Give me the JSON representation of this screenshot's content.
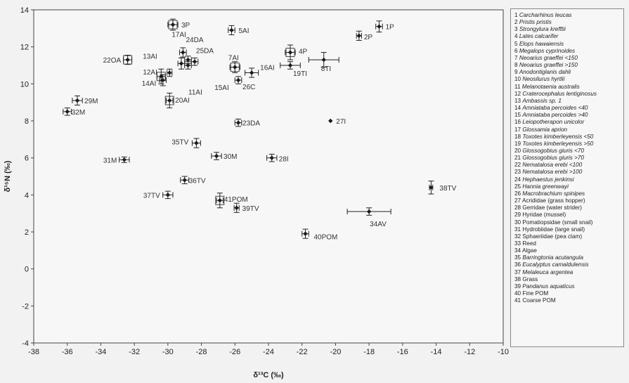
{
  "chart_data": {
    "type": "scatter",
    "xlabel": "δ¹³C (‰)",
    "ylabel": "δ¹⁵N (‰)",
    "xlim": [
      -38,
      -10
    ],
    "ylim": [
      -4,
      14
    ],
    "xticks": [
      -38,
      -36,
      -34,
      -32,
      -30,
      -28,
      -26,
      -24,
      -22,
      -20,
      -18,
      -16,
      -14,
      -12,
      -10
    ],
    "yticks": [
      -4,
      -2,
      0,
      2,
      4,
      6,
      8,
      10,
      12,
      14
    ],
    "grid": false,
    "legend_position": "right",
    "points": [
      {
        "label": "1P",
        "x": -17.4,
        "y": 13.1,
        "xerr": 0.2,
        "yerr": 0.3,
        "box": false
      },
      {
        "label": "2P",
        "x": -18.6,
        "y": 12.6,
        "xerr": 0.15,
        "yerr": 0.25,
        "box": false
      },
      {
        "label": "3P",
        "x": -29.7,
        "y": 13.2,
        "xerr": 0.3,
        "yerr": 0.3,
        "box": true
      },
      {
        "label": "4P",
        "x": -22.7,
        "y": 11.7,
        "xerr": 0.3,
        "yerr": 0.4,
        "box": true
      },
      {
        "label": "5AI",
        "x": -26.2,
        "y": 12.9,
        "xerr": 0.2,
        "yerr": 0.25,
        "box": false
      },
      {
        "label": "7AI",
        "x": -26.0,
        "y": 10.9,
        "xerr": 0.3,
        "yerr": 0.3,
        "box": true
      },
      {
        "label": "8TI",
        "x": -20.7,
        "y": 11.3,
        "xerr": 0.9,
        "yerr": 0.4,
        "box": false
      },
      {
        "label": "11AI",
        "x": -29.2,
        "y": 11.1,
        "xerr": 0.2,
        "yerr": 0.3,
        "box": false
      },
      {
        "label": "12AI",
        "x": -30.4,
        "y": 10.4,
        "xerr": 0.25,
        "yerr": 0.4,
        "box": true
      },
      {
        "label": "13AI",
        "x": -29.9,
        "y": 10.6,
        "xerr": 0.15,
        "yerr": 0.2,
        "box": false
      },
      {
        "label": "14AI",
        "x": -30.3,
        "y": 10.2,
        "xerr": 0.2,
        "yerr": 0.3,
        "box": false
      },
      {
        "label": "15AI",
        "x": -28.8,
        "y": 11.0,
        "xerr": 0.2,
        "yerr": 0.2,
        "box": false
      },
      {
        "label": "16AI",
        "x": -25.0,
        "y": 10.6,
        "xerr": 0.4,
        "yerr": 0.25,
        "box": false
      },
      {
        "label": "17AI",
        "x": -29.1,
        "y": 11.7,
        "xerr": 0.2,
        "yerr": 0.25,
        "box": false
      },
      {
        "label": "19TI",
        "x": -22.7,
        "y": 11.0,
        "xerr": 0.6,
        "yerr": 0.2,
        "box": false
      },
      {
        "label": "20AI",
        "x": -29.9,
        "y": 9.1,
        "xerr": 0.2,
        "yerr": 0.4,
        "box": true
      },
      {
        "label": "22OA",
        "x": -32.4,
        "y": 11.3,
        "xerr": 0.25,
        "yerr": 0.25,
        "box": true
      },
      {
        "label": "23DA",
        "x": -25.8,
        "y": 7.9,
        "xerr": 0.2,
        "yerr": 0.2,
        "box": false
      },
      {
        "label": "24DA",
        "x": -28.8,
        "y": 11.3,
        "xerr": 0.2,
        "yerr": 0.2,
        "box": false
      },
      {
        "label": "25DA",
        "x": -28.4,
        "y": 11.2,
        "xerr": 0.2,
        "yerr": 0.2,
        "box": false
      },
      {
        "label": "26C",
        "x": -25.8,
        "y": 10.2,
        "xerr": 0.2,
        "yerr": 0.2,
        "box": false
      },
      {
        "label": "27I",
        "x": -20.3,
        "y": 8.0,
        "xerr": 0,
        "yerr": 0,
        "box": false
      },
      {
        "label": "28I",
        "x": -23.8,
        "y": 6.0,
        "xerr": 0.3,
        "yerr": 0.2,
        "box": false
      },
      {
        "label": "29M",
        "x": -35.4,
        "y": 9.1,
        "xerr": 0.3,
        "yerr": 0.25,
        "box": false
      },
      {
        "label": "30M",
        "x": -27.1,
        "y": 6.1,
        "xerr": 0.3,
        "yerr": 0.2,
        "box": false
      },
      {
        "label": "31M",
        "x": -32.6,
        "y": 5.9,
        "xerr": 0.3,
        "yerr": 0.15,
        "box": false
      },
      {
        "label": "32M",
        "x": -36.0,
        "y": 8.5,
        "xerr": 0.25,
        "yerr": 0.2,
        "box": false
      },
      {
        "label": "34AV",
        "x": -18.0,
        "y": 3.1,
        "xerr": 1.3,
        "yerr": 0.2,
        "box": false
      },
      {
        "label": "35TV",
        "x": -28.3,
        "y": 6.8,
        "xerr": 0.25,
        "yerr": 0.25,
        "box": false
      },
      {
        "label": "36TV",
        "x": -29.0,
        "y": 4.8,
        "xerr": 0.25,
        "yerr": 0.2,
        "box": false
      },
      {
        "label": "37TV",
        "x": -30.0,
        "y": 4.0,
        "xerr": 0.3,
        "yerr": 0.2,
        "box": false
      },
      {
        "label": "38TV",
        "x": -14.3,
        "y": 4.4,
        "xerr": 0.1,
        "yerr": 0.35,
        "box": false
      },
      {
        "label": "39TV",
        "x": -25.9,
        "y": 3.3,
        "xerr": 0.15,
        "yerr": 0.25,
        "box": false
      },
      {
        "label": "40POM",
        "x": -21.8,
        "y": 1.9,
        "xerr": 0.2,
        "yerr": 0.25,
        "box": false
      },
      {
        "label": "41POM",
        "x": -26.9,
        "y": 3.7,
        "xerr": 0.2,
        "yerr": 0.4,
        "box": true
      }
    ]
  },
  "legend": [
    {
      "num": "1",
      "name": "Carcharhinus leucas",
      "species": true
    },
    {
      "num": "2",
      "name": "Pristis pristis",
      "species": true
    },
    {
      "num": "3",
      "name": "Strongylura krefftii",
      "species": true
    },
    {
      "num": "4",
      "name": "Lates calcarifer",
      "species": true
    },
    {
      "num": "5",
      "name": "Elops hawaiensis",
      "species": true
    },
    {
      "num": "6",
      "name": "Megalops cyprinoides",
      "species": true
    },
    {
      "num": "7",
      "name": "Neoarius graeffei <150",
      "species": true
    },
    {
      "num": "8",
      "name": "Neoarius graeffei >150",
      "species": true
    },
    {
      "num": "9",
      "name": "Anodontiglanis dahli",
      "species": true
    },
    {
      "num": "10",
      "name": "Neosilurus hyrtlii",
      "species": true
    },
    {
      "num": "11",
      "name": "Melanotaenia australis",
      "species": true
    },
    {
      "num": "12",
      "name": "Craterocephalus lentiginosus",
      "species": true
    },
    {
      "num": "13",
      "name": "Ambassis sp. 1",
      "species": true
    },
    {
      "num": "14",
      "name": "Amniataba percoides <40",
      "species": true
    },
    {
      "num": "15",
      "name": "Amniataba percoides >40",
      "species": true
    },
    {
      "num": "16",
      "name": "Leiopotherapon unicolor",
      "species": true
    },
    {
      "num": "17",
      "name": "Glossamia aprion",
      "species": true
    },
    {
      "num": "18",
      "name": "Toxotes kimberleyensis <50",
      "species": true
    },
    {
      "num": "19",
      "name": "Toxotes kimberleyensis >50",
      "species": true
    },
    {
      "num": "20",
      "name": "Glossogobius giuris <70",
      "species": true
    },
    {
      "num": "21",
      "name": "Glossogobius giuris >70",
      "species": true
    },
    {
      "num": "22",
      "name": "Nematalosa erebi <100",
      "species": true
    },
    {
      "num": "23",
      "name": "Nematalosa erebi >100",
      "species": true
    },
    {
      "num": "24",
      "name": "Hephaestus jenkinsi",
      "species": true
    },
    {
      "num": "25",
      "name": "Hannia greenwayi",
      "species": true
    },
    {
      "num": "26",
      "name": "Macrobrachium spinipes",
      "species": true
    },
    {
      "num": "27",
      "name": "Acrididae (grass hopper)",
      "species": false
    },
    {
      "num": "28",
      "name": "Gerridae (water strider)",
      "species": false
    },
    {
      "num": "29",
      "name": "Hyridae (mussel)",
      "species": false
    },
    {
      "num": "30",
      "name": "Pomatiopsidae (small snail)",
      "species": false
    },
    {
      "num": "31",
      "name": "Hydrobiidae (large snail)",
      "species": false
    },
    {
      "num": "32",
      "name": "Sphaeriidae (pea clam)",
      "species": false
    },
    {
      "num": "33",
      "name": "Reed",
      "species": false
    },
    {
      "num": "34",
      "name": "Algae",
      "species": false
    },
    {
      "num": "35",
      "name": "Barringtonia acutangula",
      "species": true
    },
    {
      "num": "36",
      "name": "Eucalyptus camaldulensis",
      "species": true
    },
    {
      "num": "37",
      "name": "Melaleuca argentea",
      "species": true
    },
    {
      "num": "38",
      "name": "Grass",
      "species": false
    },
    {
      "num": "39",
      "name": "Pandanus aquaticus",
      "species": true
    },
    {
      "num": "40",
      "name": "Fine POM",
      "species": false
    },
    {
      "num": "41",
      "name": "Coarse POM",
      "species": false
    }
  ]
}
